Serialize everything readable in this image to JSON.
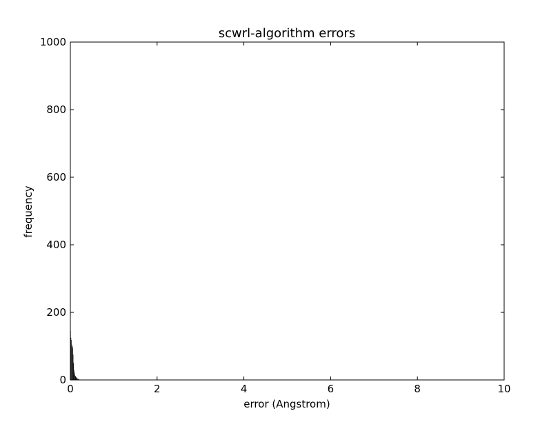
{
  "chart_data": {
    "type": "bar",
    "title": "scwrl-algorithm errors",
    "xlabel": "error (Angstrom)",
    "ylabel": "frequency",
    "xlim": [
      0,
      10
    ],
    "ylim": [
      0,
      1000
    ],
    "xticks": [
      0,
      2,
      4,
      6,
      8,
      10
    ],
    "yticks": [
      0,
      200,
      400,
      600,
      800,
      1000
    ],
    "xtick_labels": [
      "0",
      "2",
      "4",
      "6",
      "8",
      "10"
    ],
    "ytick_labels": [
      "0",
      "200",
      "400",
      "600",
      "800",
      "1000"
    ],
    "grid": false,
    "bar_color": "#000000",
    "bin_width": 0.01,
    "bins": [
      {
        "x": 0.0,
        "value": 145
      },
      {
        "x": 0.01,
        "value": 125
      },
      {
        "x": 0.02,
        "value": 118
      },
      {
        "x": 0.03,
        "value": 105
      },
      {
        "x": 0.04,
        "value": 100
      },
      {
        "x": 0.05,
        "value": 95
      },
      {
        "x": 0.06,
        "value": 75
      },
      {
        "x": 0.07,
        "value": 50
      },
      {
        "x": 0.08,
        "value": 30
      },
      {
        "x": 0.09,
        "value": 22
      },
      {
        "x": 0.1,
        "value": 15
      },
      {
        "x": 0.11,
        "value": 12
      },
      {
        "x": 0.12,
        "value": 10
      },
      {
        "x": 0.13,
        "value": 8
      },
      {
        "x": 0.14,
        "value": 7
      },
      {
        "x": 0.15,
        "value": 5
      },
      {
        "x": 0.16,
        "value": 4
      },
      {
        "x": 0.17,
        "value": 3
      },
      {
        "x": 0.18,
        "value": 3
      },
      {
        "x": 0.19,
        "value": 2
      },
      {
        "x": 0.2,
        "value": 1
      }
    ]
  }
}
